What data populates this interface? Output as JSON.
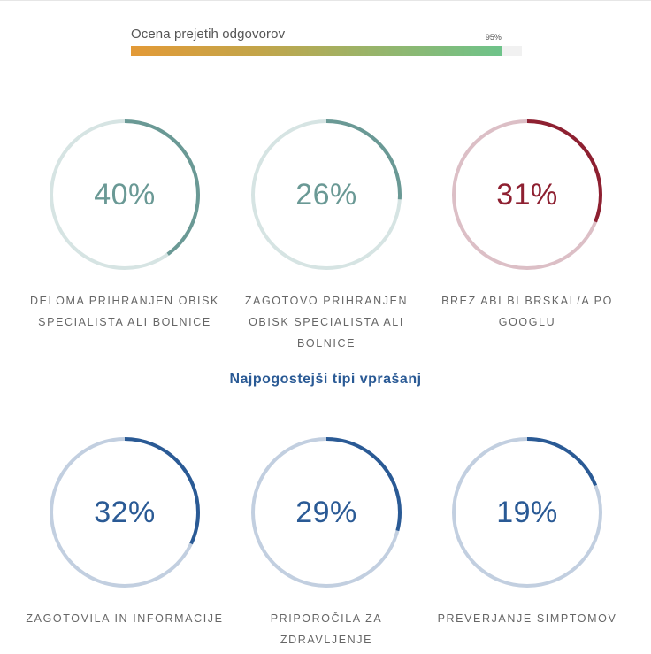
{
  "rating": {
    "label": "Ocena prejetih odgovorov",
    "value_label": "95%",
    "value": 95
  },
  "section_heading": "Najpogostejši tipi vprašanj",
  "colors": {
    "teal": "#6a9995",
    "teal_track": "#d6e4e3",
    "red": "#8e2031",
    "red_track": "#dcbfc6",
    "blue": "#2a5a95",
    "blue_track": "#c2cfe0"
  },
  "chart_data": [
    {
      "type": "pie",
      "title": "",
      "items": [
        {
          "label": "DELOMA PRIHRANJEN OBISK SPECIALISTA ALI BOLNICE",
          "value": 40,
          "value_label": "40%",
          "color": "teal"
        },
        {
          "label": "ZAGOTOVO PRIHRANJEN OBISK SPECIALISTA ALI BOLNICE",
          "value": 26,
          "value_label": "26%",
          "color": "teal"
        },
        {
          "label": "BREZ ABI BI BRSKAL/A PO GOOGLU",
          "value": 31,
          "value_label": "31%",
          "color": "red"
        }
      ]
    },
    {
      "type": "pie",
      "title": "Najpogostejši tipi vprašanj",
      "items": [
        {
          "label": "ZAGOTOVILA IN INFORMACIJE",
          "value": 32,
          "value_label": "32%",
          "color": "blue"
        },
        {
          "label": "PRIPOROČILA ZA ZDRAVLJENJE",
          "value": 29,
          "value_label": "29%",
          "color": "blue"
        },
        {
          "label": "PREVERJANJE SIMPTOMOV",
          "value": 19,
          "value_label": "19%",
          "color": "blue"
        }
      ]
    }
  ]
}
